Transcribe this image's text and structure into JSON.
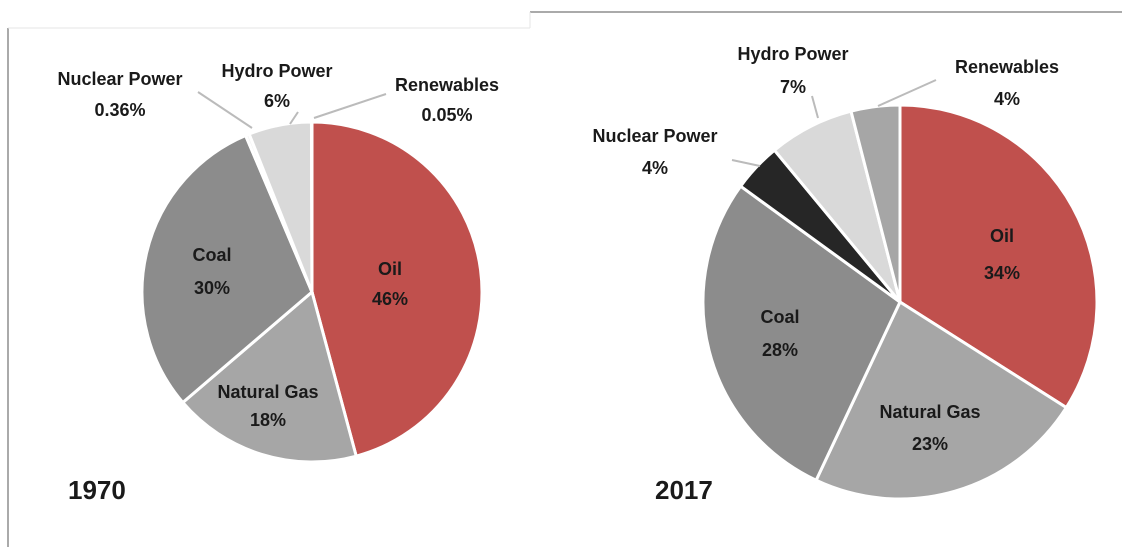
{
  "chart_data": [
    {
      "type": "pie",
      "title": "1970",
      "categories": [
        "Oil",
        "Natural Gas",
        "Coal",
        "Nuclear Power",
        "Hydro Power",
        "Renewables"
      ],
      "values": [
        46,
        18,
        30,
        0.36,
        6,
        0.05
      ],
      "value_labels": [
        "46%",
        "18%",
        "30%",
        "0.36%",
        "6%",
        "0.05%"
      ],
      "colors": [
        "#c0504d",
        "#a6a6a6",
        "#8c8c8c",
        "#f2f2f2",
        "#d9d9d9",
        "#bfbfbf"
      ]
    },
    {
      "type": "pie",
      "title": "2017",
      "categories": [
        "Oil",
        "Natural Gas",
        "Coal",
        "Nuclear Power",
        "Hydro Power",
        "Renewables"
      ],
      "values": [
        34,
        23,
        28,
        4,
        7,
        4
      ],
      "value_labels": [
        "34%",
        "23%",
        "28%",
        "4%",
        "7%",
        "4%"
      ],
      "colors": [
        "#c0504d",
        "#a6a6a6",
        "#8c8c8c",
        "#262626",
        "#d9d9d9",
        "#a6a6a6"
      ]
    }
  ]
}
